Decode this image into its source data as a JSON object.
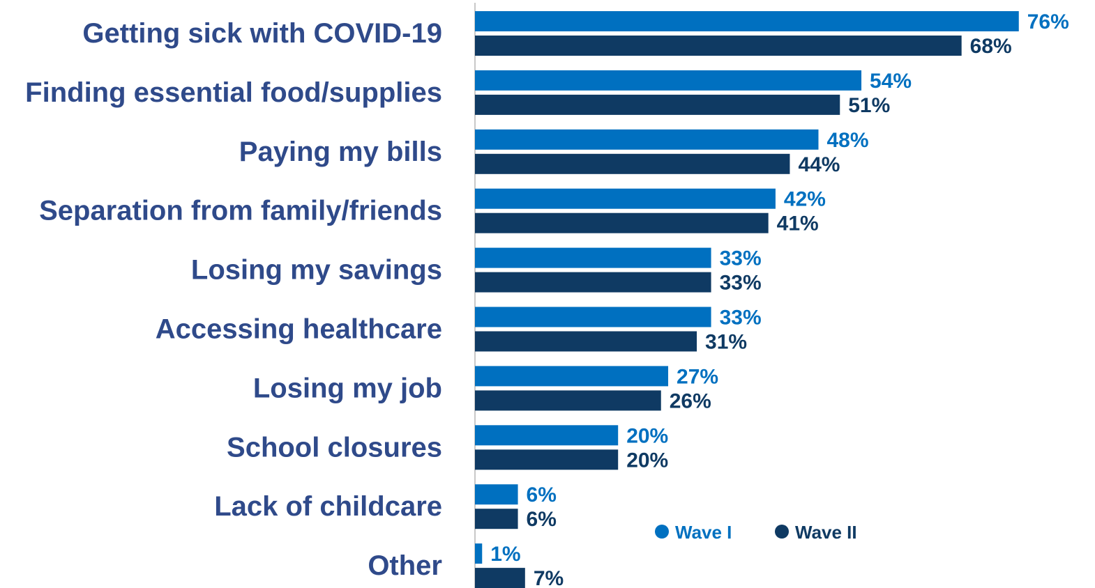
{
  "chart_data": {
    "type": "bar",
    "orientation": "horizontal",
    "categories": [
      "Getting sick with COVID-19",
      "Finding essential food/supplies",
      "Paying my bills",
      "Separation from family/friends",
      "Losing my savings",
      "Accessing healthcare",
      "Losing my job",
      "School closures",
      "Lack of childcare",
      "Other"
    ],
    "series": [
      {
        "name": "Wave I",
        "color": "#0070c0",
        "values": [
          76,
          54,
          48,
          42,
          33,
          33,
          27,
          20,
          6,
          1
        ],
        "labels": [
          "76%",
          "54%",
          "48%",
          "42%",
          "33%",
          "33%",
          "27%",
          "20%",
          "6%",
          "1%"
        ]
      },
      {
        "name": "Wave II",
        "color": "#0f3a63",
        "values": [
          68,
          51,
          44,
          41,
          33,
          31,
          26,
          20,
          6,
          7
        ],
        "labels": [
          "68%",
          "51%",
          "44%",
          "41%",
          "33%",
          "31%",
          "26%",
          "20%",
          "6%",
          "7%"
        ]
      }
    ],
    "xlim": [
      0,
      100
    ],
    "unit": "%",
    "grid": false,
    "legend_position": "bottom-right",
    "title": "",
    "xlabel": "",
    "ylabel": "",
    "category_label_color": "#2f4a8a",
    "axis_line_color": "#c8c8c8"
  }
}
